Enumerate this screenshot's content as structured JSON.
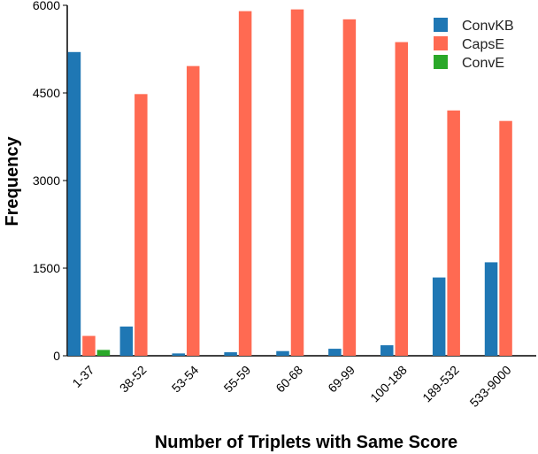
{
  "chart_data": {
    "type": "bar",
    "xlabel": "Number of Triplets with Same Score",
    "ylabel": "Frequency",
    "categories": [
      "1-37",
      "38-52",
      "53-54",
      "55-59",
      "60-68",
      "69-99",
      "100-188",
      "189-532",
      "533-9000"
    ],
    "series": [
      {
        "name": "ConvKB",
        "color": "#1f77b4",
        "values": [
          5200,
          500,
          40,
          60,
          80,
          120,
          180,
          1340,
          1600
        ]
      },
      {
        "name": "CapsE",
        "color": "#ff6a52",
        "values": [
          340,
          4480,
          4960,
          5900,
          5930,
          5760,
          5370,
          4200,
          4020
        ]
      },
      {
        "name": "ConvE",
        "color": "#2aa829",
        "values": [
          100,
          0,
          0,
          0,
          0,
          0,
          0,
          0,
          0
        ]
      }
    ],
    "ylim": [
      0,
      6000
    ],
    "yticks": [
      0,
      1500,
      3000,
      4500,
      6000
    ],
    "grid": false,
    "legend": "top-right"
  }
}
